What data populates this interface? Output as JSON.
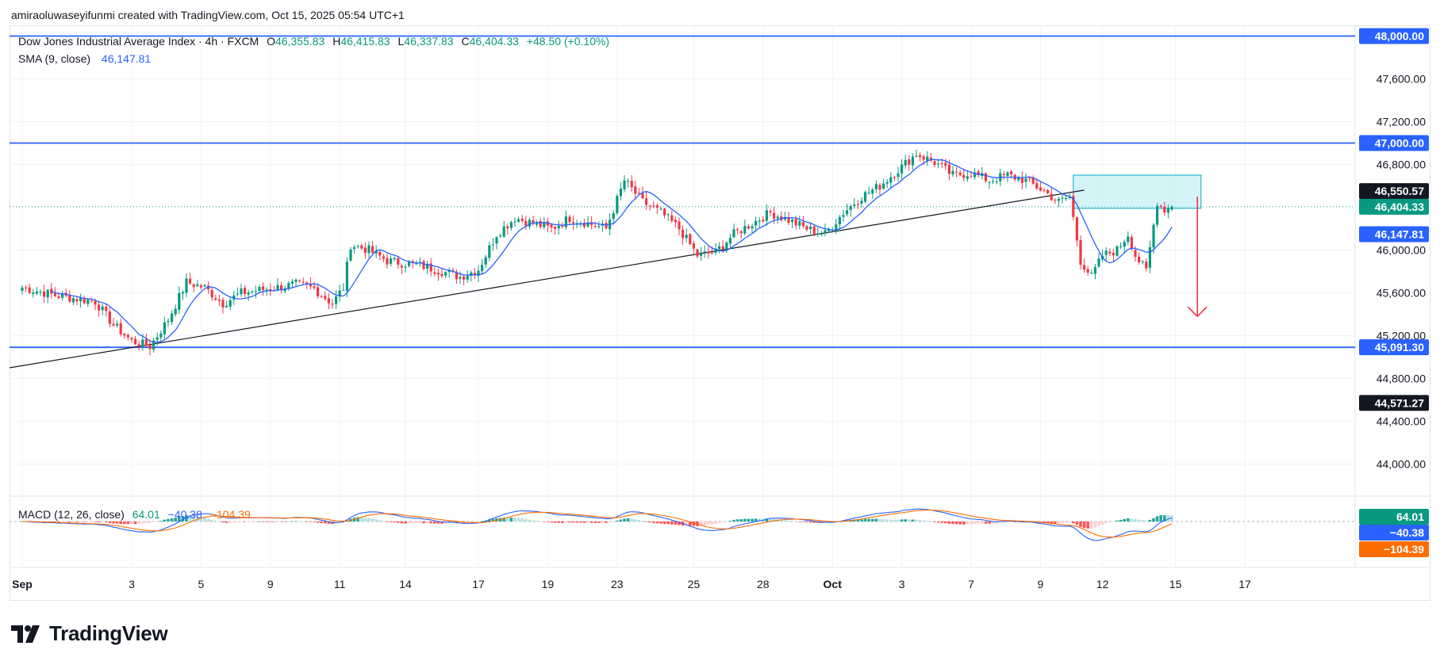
{
  "credit": "amiraoluwaseyifunmi created with TradingView.com, Oct 15, 2025 05:54 UTC+1",
  "legend": {
    "title": "Dow Jones Industrial Average Index · 4h · FXCM",
    "o_label": "O",
    "o": "46,355.83",
    "h_label": "H",
    "h": "46,415.83",
    "l_label": "L",
    "l": "46,337.83",
    "c_label": "C",
    "c": "46,404.33",
    "change": "+48.50 (+0.10%)",
    "sma_label": "SMA (9, close)",
    "sma": "46,147.81"
  },
  "macd_legend": {
    "label": "MACD (12, 26, close)",
    "hist": "64.01",
    "macd": "−40.38",
    "signal": "−104.39"
  },
  "brand": "TradingView",
  "colors": {
    "up": "#089981",
    "down": "#f23645",
    "sma": "#2962ff",
    "level": "#2962ff",
    "zone_fill": "#b2ebf2",
    "zone_stroke": "#00acc1",
    "arrow": "#f23645",
    "macd": "#2962ff",
    "signal": "#ff6d00",
    "trend": "#131722"
  },
  "chart_data": {
    "type": "candlestick",
    "interval": "4h",
    "symbol": "Dow Jones Industrial Average Index",
    "ylim": [
      43700,
      48100
    ],
    "y_ticks": [
      "48,000.00",
      "47,600.00",
      "47,200.00",
      "46,800.00",
      "46,000.00",
      "45,600.00",
      "45,200.00",
      "44,800.00",
      "44,400.00",
      "44,000.00"
    ],
    "y_tick_values": [
      48000,
      47600,
      47200,
      46800,
      46000,
      45600,
      45200,
      44800,
      44400,
      44000
    ],
    "x_ticks": [
      "Sep",
      "3",
      "5",
      "9",
      "11",
      "14",
      "17",
      "19",
      "23",
      "25",
      "28",
      "Oct",
      "3",
      "7",
      "9",
      "12",
      "15",
      "17"
    ],
    "x_tick_index": [
      0,
      30,
      49,
      68,
      87,
      105,
      125,
      144,
      163,
      184,
      203,
      222,
      241,
      260,
      279,
      296,
      316,
      335
    ],
    "bar_count": 316,
    "horizontal_levels": [
      {
        "value": 48000,
        "label": "48,000.00"
      },
      {
        "value": 47000,
        "label": "47,000.00"
      },
      {
        "value": 45091.3,
        "label": "45,091.30"
      }
    ],
    "price_tags": [
      {
        "value": 46550.57,
        "label": "46,550.57",
        "style": "black"
      },
      {
        "value": 46404.33,
        "label": "46,404.33",
        "style": "green"
      },
      {
        "value": 46147.81,
        "label": "46,147.81",
        "style": "blue"
      },
      {
        "value": 44571.27,
        "label": "44,571.27",
        "style": "black"
      }
    ],
    "trendline": {
      "from": [
        0,
        44900
      ],
      "to": [
        291,
        46560
      ]
    },
    "supply_zone": {
      "x_from": 288,
      "x_to": 323,
      "top": 46700,
      "bottom": 46390
    },
    "arrow": {
      "x": 322,
      "from": 46500,
      "to": 45380
    },
    "anchors": [
      [
        0,
        45650
      ],
      [
        10,
        45570
      ],
      [
        20,
        45520
      ],
      [
        25,
        45300
      ],
      [
        30,
        45150
      ],
      [
        35,
        45100
      ],
      [
        40,
        45350
      ],
      [
        45,
        45700
      ],
      [
        50,
        45650
      ],
      [
        55,
        45500
      ],
      [
        60,
        45600
      ],
      [
        70,
        45650
      ],
      [
        75,
        45680
      ],
      [
        80,
        45640
      ],
      [
        85,
        45500
      ],
      [
        88,
        45650
      ],
      [
        90,
        46050
      ],
      [
        95,
        46000
      ],
      [
        100,
        45900
      ],
      [
        110,
        45850
      ],
      [
        115,
        45800
      ],
      [
        120,
        45750
      ],
      [
        125,
        45820
      ],
      [
        130,
        46150
      ],
      [
        135,
        46300
      ],
      [
        140,
        46250
      ],
      [
        145,
        46200
      ],
      [
        150,
        46300
      ],
      [
        160,
        46200
      ],
      [
        165,
        46650
      ],
      [
        170,
        46450
      ],
      [
        175,
        46350
      ],
      [
        180,
        46200
      ],
      [
        185,
        45950
      ],
      [
        190,
        45980
      ],
      [
        195,
        46150
      ],
      [
        200,
        46250
      ],
      [
        205,
        46350
      ],
      [
        210,
        46280
      ],
      [
        215,
        46200
      ],
      [
        220,
        46150
      ],
      [
        225,
        46350
      ],
      [
        230,
        46500
      ],
      [
        235,
        46600
      ],
      [
        240,
        46750
      ],
      [
        245,
        46900
      ],
      [
        250,
        46820
      ],
      [
        255,
        46700
      ],
      [
        260,
        46720
      ],
      [
        265,
        46650
      ],
      [
        270,
        46700
      ],
      [
        275,
        46650
      ],
      [
        280,
        46550
      ],
      [
        284,
        46450
      ],
      [
        287,
        46500
      ],
      [
        290,
        45900
      ],
      [
        293,
        45750
      ],
      [
        296,
        45950
      ],
      [
        300,
        46000
      ],
      [
        303,
        46150
      ],
      [
        305,
        45950
      ],
      [
        308,
        45800
      ],
      [
        311,
        46450
      ],
      [
        313,
        46380
      ],
      [
        316,
        46404
      ]
    ],
    "macd": {
      "hist_last": 64.01,
      "macd_last": -40.38,
      "signal_last": -104.39,
      "label": "MACD (12, 26, close)"
    }
  }
}
